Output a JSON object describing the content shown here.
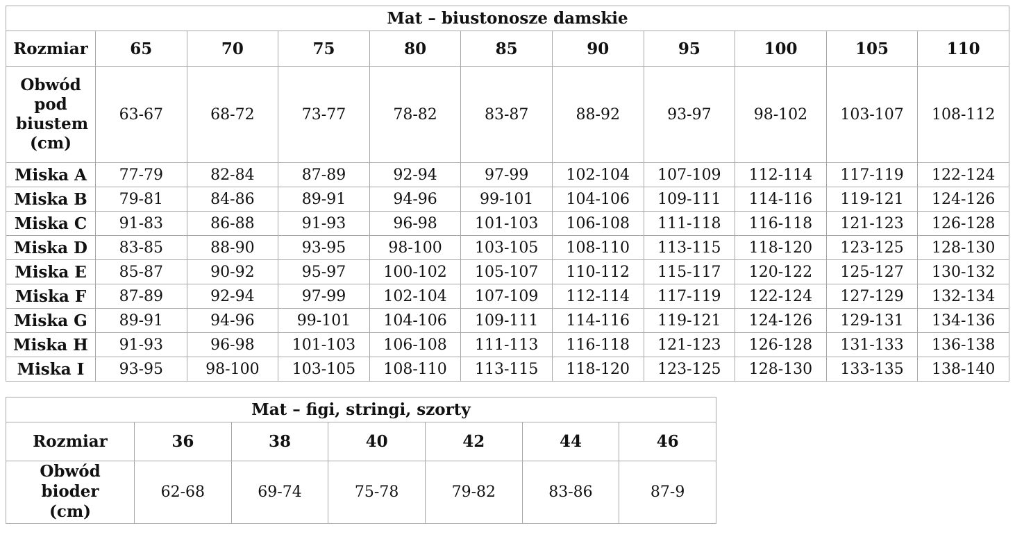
{
  "page": {
    "background_color": "#ffffff",
    "text_color": "#111111",
    "border_color": "#a6a6a6"
  },
  "bras_table": {
    "title": "Mat – biustonosze damskie",
    "size_row_label": "Rozmiar",
    "sizes": [
      "65",
      "70",
      "75",
      "80",
      "85",
      "90",
      "95",
      "100",
      "105",
      "110"
    ],
    "underbust_label": "Obwód pod biustem (cm)",
    "underbust_values": [
      "63-67",
      "68-72",
      "73-77",
      "78-82",
      "83-87",
      "88-92",
      "93-97",
      "98-102",
      "103-107",
      "108-112"
    ],
    "cup_rows": [
      {
        "label": "Miska A",
        "values": [
          "77-79",
          "82-84",
          "87-89",
          "92-94",
          "97-99",
          "102-104",
          "107-109",
          "112-114",
          "117-119",
          "122-124"
        ]
      },
      {
        "label": "Miska B",
        "values": [
          "79-81",
          "84-86",
          "89-91",
          "94-96",
          "99-101",
          "104-106",
          "109-111",
          "114-116",
          "119-121",
          "124-126"
        ]
      },
      {
        "label": "Miska C",
        "values": [
          "91-83",
          "86-88",
          "91-93",
          "96-98",
          "101-103",
          "106-108",
          "111-118",
          "116-118",
          "121-123",
          "126-128"
        ]
      },
      {
        "label": "Miska D",
        "values": [
          "83-85",
          "88-90",
          "93-95",
          "98-100",
          "103-105",
          "108-110",
          "113-115",
          "118-120",
          "123-125",
          "128-130"
        ]
      },
      {
        "label": "Miska E",
        "values": [
          "85-87",
          "90-92",
          "95-97",
          "100-102",
          "105-107",
          "110-112",
          "115-117",
          "120-122",
          "125-127",
          "130-132"
        ]
      },
      {
        "label": "Miska F",
        "values": [
          "87-89",
          "92-94",
          "97-99",
          "102-104",
          "107-109",
          "112-114",
          "117-119",
          "122-124",
          "127-129",
          "132-134"
        ]
      },
      {
        "label": "Miska G",
        "values": [
          "89-91",
          "94-96",
          "99-101",
          "104-106",
          "109-111",
          "114-116",
          "119-121",
          "124-126",
          "129-131",
          "134-136"
        ]
      },
      {
        "label": "Miska H",
        "values": [
          "91-93",
          "96-98",
          "101-103",
          "106-108",
          "111-113",
          "116-118",
          "121-123",
          "126-128",
          "131-133",
          "136-138"
        ]
      },
      {
        "label": "Miska I",
        "values": [
          "93-95",
          "98-100",
          "103-105",
          "108-110",
          "113-115",
          "118-120",
          "123-125",
          "128-130",
          "133-135",
          "138-140"
        ]
      }
    ]
  },
  "panties_table": {
    "title": "Mat – figi, stringi, szorty",
    "size_row_label": "Rozmiar",
    "sizes": [
      "36",
      "38",
      "40",
      "42",
      "44",
      "46"
    ],
    "hips_label": "Obwód bioder (cm)",
    "hips_values": [
      "62-68",
      "69-74",
      "75-78",
      "79-82",
      "83-86",
      "87-9"
    ]
  }
}
